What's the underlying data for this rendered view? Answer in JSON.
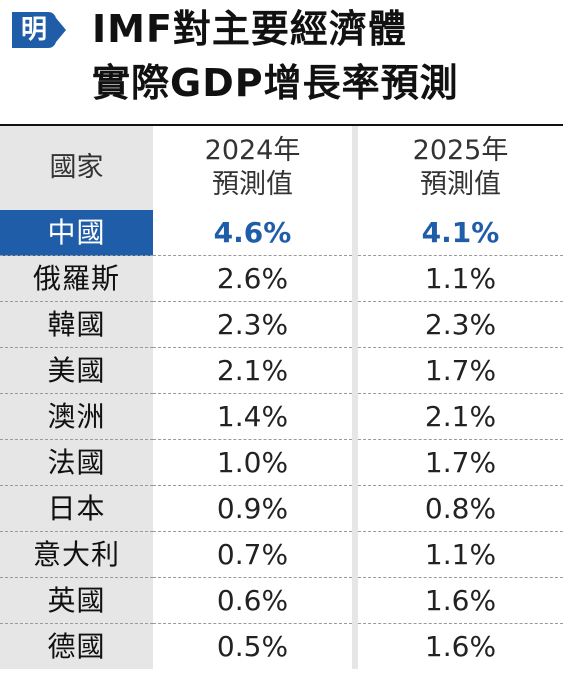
{
  "logo": {
    "text": "明",
    "color": "#1f5da8"
  },
  "title": {
    "line1": "IMF對主要經濟體",
    "line2": "實際GDP增長率預測"
  },
  "colors": {
    "highlight": "#1f5da8",
    "label_bg": "#e6e6e6"
  },
  "chart_data": {
    "type": "table",
    "title": "IMF對主要經濟體實際GDP增長率預測",
    "columns": [
      {
        "label": "國家"
      },
      {
        "line1": "2024年",
        "line2": "預測值"
      },
      {
        "line1": "2025年",
        "line2": "預測值"
      }
    ],
    "categories": [
      "中國",
      "俄羅斯",
      "韓國",
      "美國",
      "澳洲",
      "法國",
      "日本",
      "意大利",
      "英國",
      "德國"
    ],
    "series": [
      {
        "values": [
          4.6,
          2.6,
          2.3,
          2.1,
          1.4,
          1.0,
          0.9,
          0.7,
          0.6,
          0.5
        ]
      },
      {
        "values": [
          4.1,
          1.1,
          2.3,
          1.7,
          2.1,
          1.7,
          0.8,
          1.1,
          1.6,
          1.6
        ]
      }
    ],
    "unit": "%",
    "highlighted_row": "中國",
    "rows": [
      {
        "country": "中國",
        "v2024": "4.6%",
        "v2025": "4.1%"
      },
      {
        "country": "俄羅斯",
        "v2024": "2.6%",
        "v2025": "1.1%"
      },
      {
        "country": "韓國",
        "v2024": "2.3%",
        "v2025": "2.3%"
      },
      {
        "country": "美國",
        "v2024": "2.1%",
        "v2025": "1.7%"
      },
      {
        "country": "澳洲",
        "v2024": "1.4%",
        "v2025": "2.1%"
      },
      {
        "country": "法國",
        "v2024": "1.0%",
        "v2025": "1.7%"
      },
      {
        "country": "日本",
        "v2024": "0.9%",
        "v2025": "0.8%"
      },
      {
        "country": "意大利",
        "v2024": "0.7%",
        "v2025": "1.1%"
      },
      {
        "country": "英國",
        "v2024": "0.6%",
        "v2025": "1.6%"
      },
      {
        "country": "德國",
        "v2024": "0.5%",
        "v2025": "1.6%"
      }
    ]
  }
}
